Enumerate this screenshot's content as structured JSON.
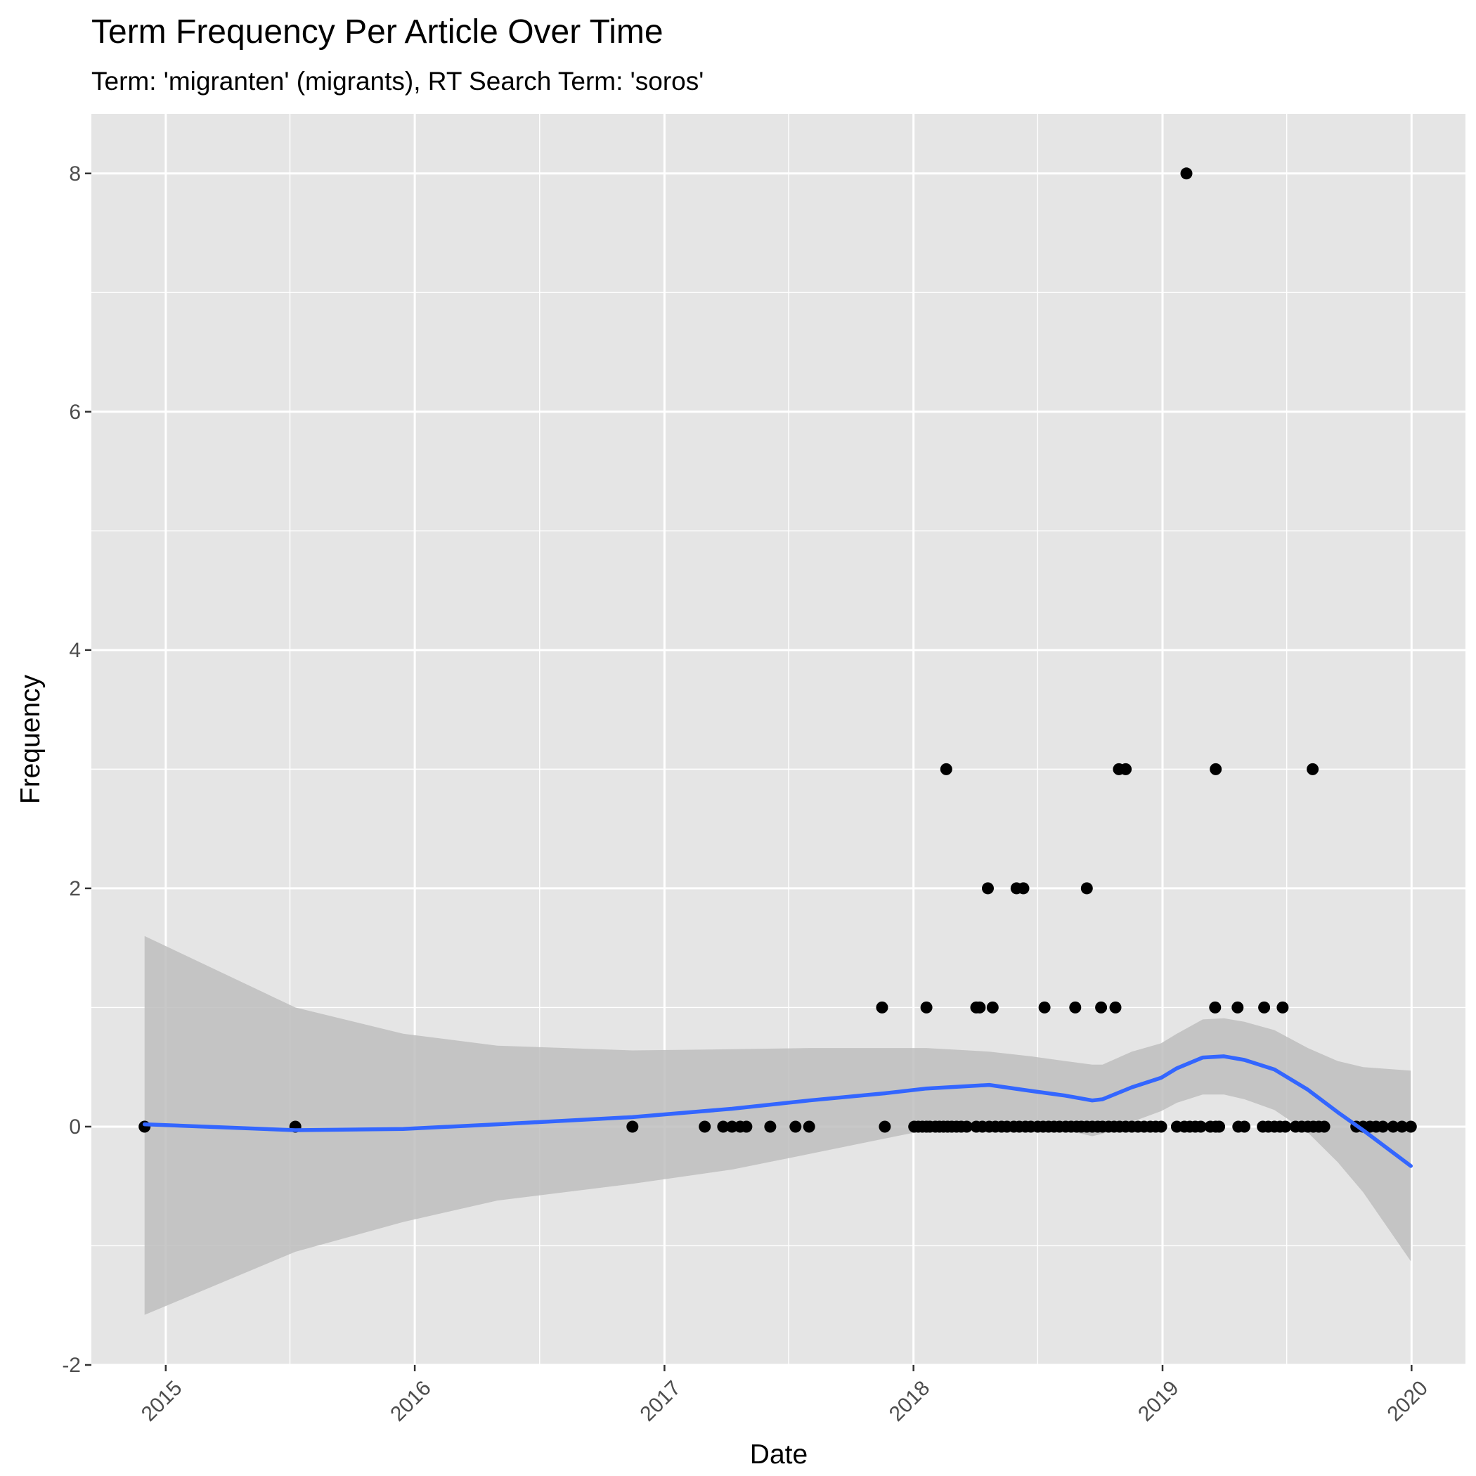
{
  "chart_data": {
    "type": "scatter",
    "title": "Term Frequency Per Article Over Time",
    "subtitle": "Term: 'migranten' (migrants), RT Search Term: 'soros'",
    "xlabel": "Date",
    "ylabel": "Frequency",
    "xlim": [
      "2014-09-14",
      "2020-03-20"
    ],
    "ylim": [
      -2,
      8.5
    ],
    "x_ticks": [
      "2015",
      "2016",
      "2017",
      "2018",
      "2019",
      "2020"
    ],
    "y_ticks": [
      "-2",
      "0",
      "2",
      "4",
      "6",
      "8"
    ],
    "grid": true,
    "legend": "none",
    "colors": {
      "panel": "#e5e5e5",
      "grid": "#ffffff",
      "points": "#000000",
      "smooth_line": "#3366ff",
      "ribbon": "#bebebe"
    },
    "series": [
      {
        "kind": "points",
        "x": [
          "2014-12-01",
          "2015-07-10",
          "2016-11-15",
          "2017-03-01",
          "2017-03-28",
          "2017-04-10",
          "2017-04-22",
          "2017-05-01",
          "2017-06-05",
          "2017-07-12",
          "2017-08-01",
          "2017-11-20",
          "2018-01-02",
          "2018-01-08",
          "2018-01-14",
          "2018-01-20",
          "2018-01-25",
          "2018-02-02",
          "2018-02-08",
          "2018-02-14",
          "2018-02-20",
          "2018-02-26",
          "2018-03-05",
          "2018-03-12",
          "2018-03-20",
          "2018-04-03",
          "2018-04-12",
          "2018-04-22",
          "2018-05-01",
          "2018-05-10",
          "2018-05-18",
          "2018-05-28",
          "2018-06-05",
          "2018-06-14",
          "2018-06-22",
          "2018-07-02",
          "2018-07-10",
          "2018-07-18",
          "2018-07-26",
          "2018-08-03",
          "2018-08-12",
          "2018-08-20",
          "2018-08-28",
          "2018-09-04",
          "2018-09-12",
          "2018-09-20",
          "2018-09-28",
          "2018-10-05",
          "2018-10-14",
          "2018-10-22",
          "2018-10-30",
          "2018-11-08",
          "2018-11-17",
          "2018-11-26",
          "2018-12-05",
          "2018-12-14",
          "2018-12-22",
          "2018-12-30",
          "2019-01-22",
          "2019-02-02",
          "2019-02-10",
          "2019-02-18",
          "2019-02-26",
          "2019-03-12",
          "2019-03-20",
          "2019-03-25",
          "2019-04-22",
          "2019-05-01",
          "2019-05-28",
          "2019-06-05",
          "2019-06-14",
          "2019-06-22",
          "2019-06-30",
          "2019-07-15",
          "2019-07-24",
          "2019-08-02",
          "2019-08-10",
          "2019-08-18",
          "2019-08-26",
          "2019-10-12",
          "2019-10-22",
          "2019-11-01",
          "2019-11-10",
          "2019-11-20",
          "2019-12-05",
          "2019-12-18",
          "2019-12-31",
          "2017-11-16",
          "2018-01-20",
          "2018-02-18",
          "2018-04-03",
          "2018-04-08",
          "2018-04-20",
          "2018-04-27",
          "2018-06-01",
          "2018-06-11",
          "2018-07-12",
          "2018-08-26",
          "2018-09-12",
          "2018-10-03",
          "2018-10-24",
          "2018-10-29",
          "2018-11-08",
          "2019-02-05",
          "2019-03-19",
          "2019-03-20",
          "2019-04-21",
          "2019-05-30",
          "2019-06-26",
          "2019-08-09"
        ],
        "y": [
          0,
          0,
          0,
          0,
          0,
          0,
          0,
          0,
          0,
          0,
          0,
          0,
          0,
          0,
          0,
          0,
          0,
          0,
          0,
          0,
          0,
          0,
          0,
          0,
          0,
          0,
          0,
          0,
          0,
          0,
          0,
          0,
          0,
          0,
          0,
          0,
          0,
          0,
          0,
          0,
          0,
          0,
          0,
          0,
          0,
          0,
          0,
          0,
          0,
          0,
          0,
          0,
          0,
          0,
          0,
          0,
          0,
          0,
          0,
          0,
          0,
          0,
          0,
          0,
          0,
          0,
          0,
          0,
          0,
          0,
          0,
          0,
          0,
          0,
          0,
          0,
          0,
          0,
          0,
          0,
          0,
          0,
          0,
          0,
          0,
          0,
          0,
          1,
          1,
          3,
          1,
          1,
          2,
          1,
          2,
          2,
          1,
          1,
          2,
          1,
          1,
          3,
          3,
          8,
          1,
          3,
          1,
          1,
          1,
          3
        ]
      },
      {
        "kind": "smooth",
        "x": [
          "2014-12-01",
          "2015-07-10",
          "2015-12-15",
          "2016-05-01",
          "2016-11-15",
          "2017-04-10",
          "2017-08-01",
          "2017-11-20",
          "2018-01-20",
          "2018-04-22",
          "2018-06-22",
          "2018-08-12",
          "2018-09-20",
          "2018-10-05",
          "2018-11-17",
          "2018-12-30",
          "2019-01-22",
          "2019-03-01",
          "2019-04-01",
          "2019-05-01",
          "2019-06-14",
          "2019-08-02",
          "2019-09-15",
          "2019-10-22",
          "2019-12-31"
        ],
        "y": [
          0.02,
          -0.03,
          -0.02,
          0.02,
          0.08,
          0.15,
          0.22,
          0.28,
          0.32,
          0.35,
          0.3,
          0.26,
          0.22,
          0.23,
          0.33,
          0.41,
          0.49,
          0.58,
          0.59,
          0.56,
          0.48,
          0.31,
          0.12,
          -0.03,
          -0.33
        ],
        "lower": [
          -1.58,
          -1.05,
          -0.8,
          -0.62,
          -0.48,
          -0.36,
          -0.23,
          -0.1,
          -0.03,
          -0.01,
          -0.02,
          -0.03,
          -0.08,
          -0.06,
          0.04,
          0.13,
          0.2,
          0.27,
          0.27,
          0.23,
          0.14,
          -0.05,
          -0.3,
          -0.55,
          -1.13
        ],
        "upper": [
          1.6,
          1.0,
          0.78,
          0.68,
          0.64,
          0.65,
          0.66,
          0.66,
          0.66,
          0.63,
          0.59,
          0.55,
          0.52,
          0.52,
          0.63,
          0.7,
          0.78,
          0.9,
          0.91,
          0.88,
          0.81,
          0.66,
          0.55,
          0.5,
          0.47
        ]
      }
    ]
  }
}
